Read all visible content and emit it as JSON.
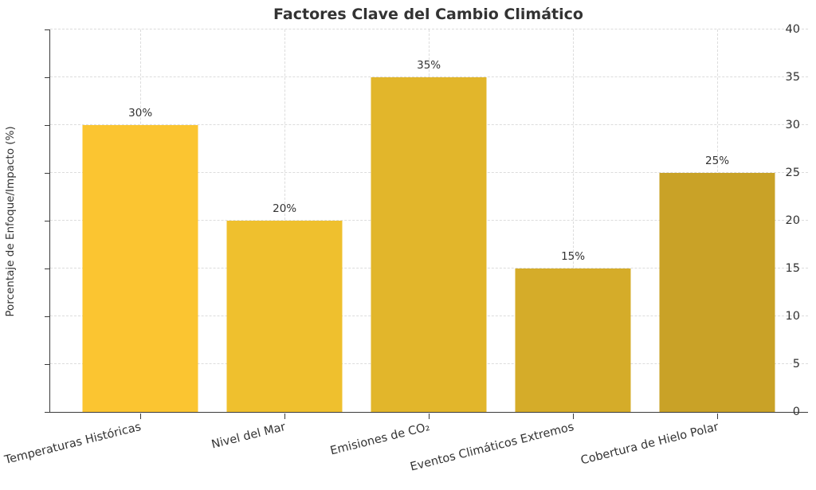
{
  "chart_data": {
    "type": "bar",
    "title": "Factores Clave del Cambio Climático",
    "ylabel": "Porcentaje de Enfoque/Impacto (%)",
    "xlabel": "",
    "categories": [
      "Temperaturas Históricas",
      "Nivel del Mar",
      "Emisiones de CO₂",
      "Eventos Climáticos Extremos",
      "Cobertura de Hielo Polar"
    ],
    "values": [
      30,
      20,
      35,
      15,
      25
    ],
    "value_labels": [
      "30%",
      "20%",
      "35%",
      "15%",
      "25%"
    ],
    "bar_colors": [
      "#FBC531",
      "#EFC02E",
      "#E2B62B",
      "#D5AC29",
      "#C9A227"
    ],
    "ylim": [
      0,
      40
    ],
    "yticks": [
      0,
      5,
      10,
      15,
      20,
      25,
      30,
      35,
      40
    ],
    "grid": "dashed horizontal at yticks and vertical at bar centers",
    "legend": "none",
    "text_color": "#333333",
    "grid_color": "#DCDCDC",
    "axis_color": "#3B3B3B",
    "background": "#FFFFFF"
  }
}
